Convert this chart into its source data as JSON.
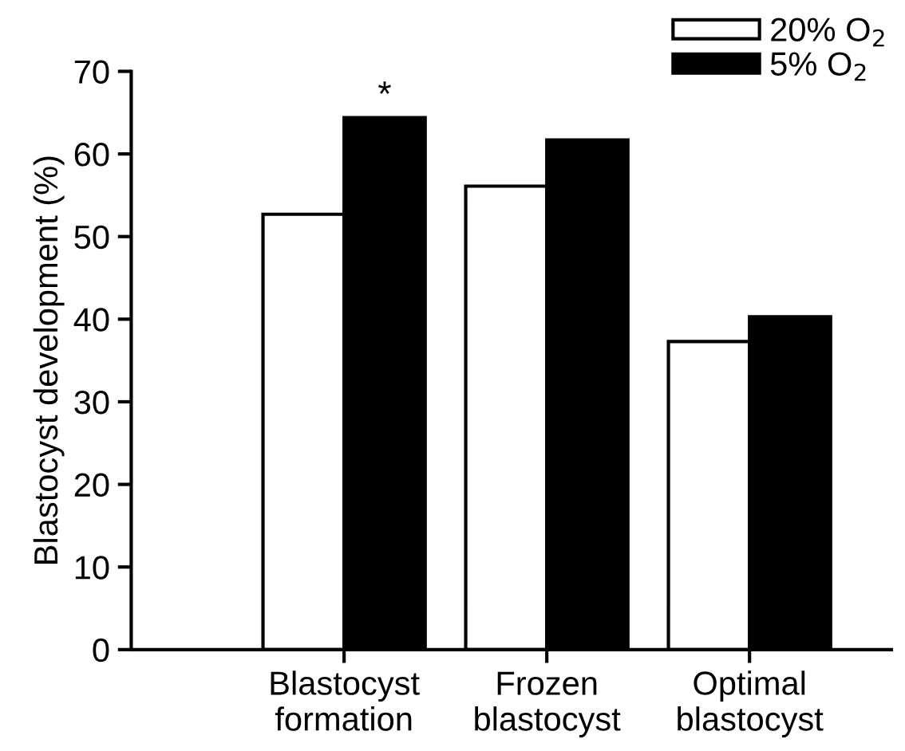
{
  "chart_data": {
    "type": "bar",
    "ylabel": "Blastocyst development (%)",
    "categories": [
      "Blastocyst\nformation",
      "Frozen\nblastocyst",
      "Optimal\nblastocyst"
    ],
    "series": [
      {
        "name": "20% O$_{2}$",
        "color": "#ffffff",
        "values": [
          52.7,
          56.1,
          37.3
        ]
      },
      {
        "name": "5% O$_{2}$",
        "color": "#000000",
        "values": [
          64.4,
          61.7,
          40.3
        ]
      }
    ],
    "ylim": [
      0,
      70
    ],
    "yticks": [
      0,
      10,
      20,
      30,
      40,
      50,
      60,
      70
    ],
    "annotations": [
      {
        "text": "*",
        "x": "Blastocyst\nformation",
        "y": 64.4
      }
    ],
    "grid": false,
    "legend": "top right"
  }
}
